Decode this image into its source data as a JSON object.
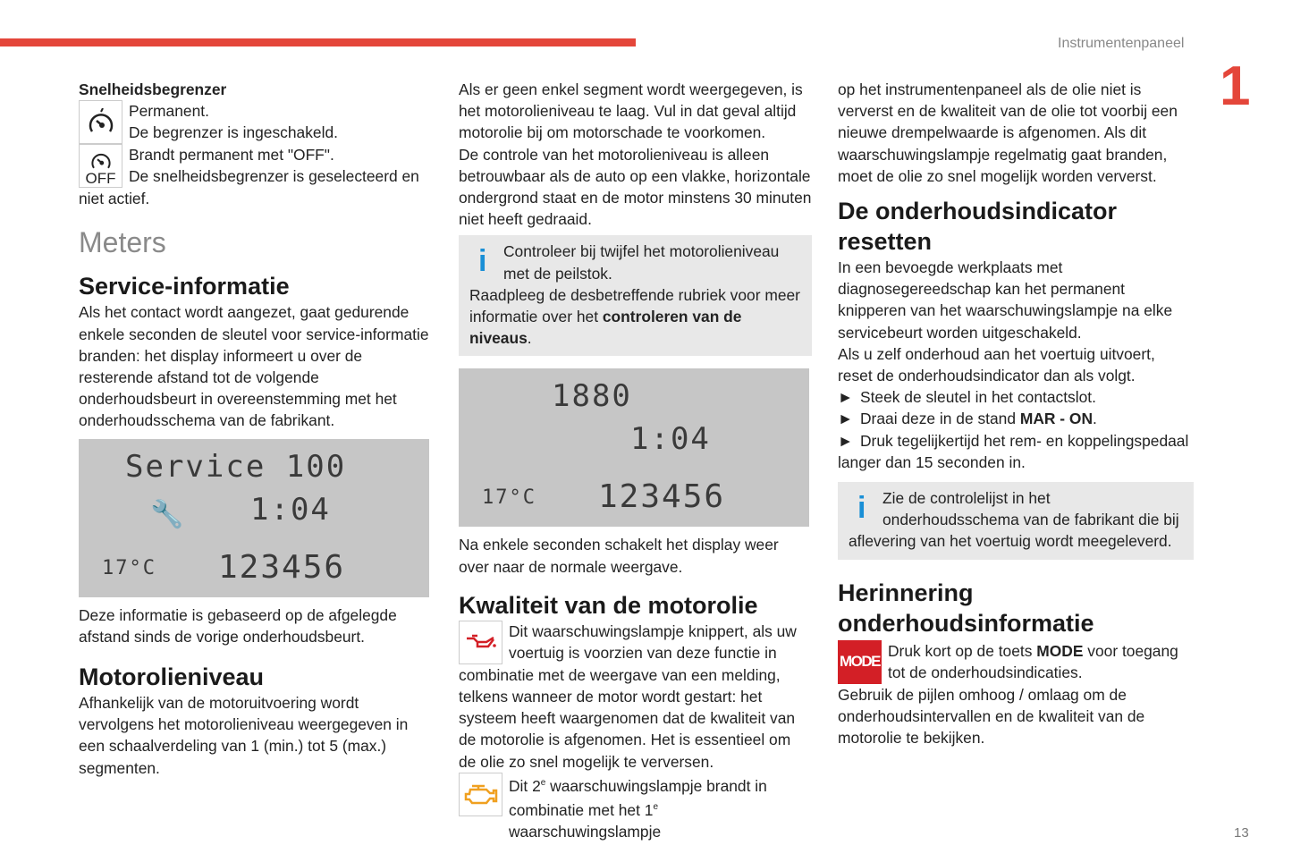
{
  "header": {
    "title": "Instrumentenpaneel",
    "chapter": "1",
    "page": "13",
    "accent": "#e4463a"
  },
  "col1": {
    "limiter_title": "Snelheidsbegrenzer",
    "limiter_lines": [
      "Permanent.",
      "De begrenzer is ingeschakeld.",
      "Brandt permanent met \"OFF\".",
      "De snelheidsbegrenzer is geselecteerd en",
      "niet actief."
    ],
    "off_label": "OFF",
    "meters": "Meters",
    "service_title": "Service-informatie",
    "service_text": "Als het contact wordt aangezet, gaat gedurende enkele seconden de sleutel voor service-informatie branden: het display informeert u over de resterende afstand tot de volgende onderhoudsbeurt in overeenstemming met het onderhoudsschema van de fabrikant.",
    "display": {
      "line1": "Service 100",
      "time": "1:04",
      "temp": "17°C",
      "odo": "123456"
    },
    "after_display": "Deze informatie is gebaseerd op de afgelegde afstand sinds de vorige onderhoudsbeurt.",
    "oil_title": "Motorolieniveau",
    "oil_text": "Afhankelijk van de motoruitvoering wordt vervolgens het motorolieniveau weergegeven in een schaalverdeling van 1 (min.) tot 5 (max.) segmenten."
  },
  "col2": {
    "p1": "Als er geen enkel segment wordt weergegeven, is het motorolieniveau te laag. Vul in dat geval altijd motorolie bij om motorschade te voorkomen.",
    "p2": "De controle van het motorolieniveau is alleen betrouwbaar als de auto op een vlakke, horizontale ondergrond staat en de motor minstens 30 minuten niet heeft gedraaid.",
    "info_line": "Controleer bij twijfel het motorolieniveau met de peilstok.",
    "info_more": "Raadpleeg de desbetreffende rubriek voor meer informatie over het ",
    "info_bold": "controleren van de niveaus",
    "info_end": ".",
    "display": {
      "line1": "1880",
      "time": "1:04",
      "temp": "17°C",
      "odo": "123456"
    },
    "after_display": "Na enkele seconden schakelt het display weer over naar de normale weergave.",
    "quality_title": "Kwaliteit van de motorolie",
    "q_first": "Dit waarschuwingslampje knippert, als uw voertuig is voorzien van deze functie in",
    "q_rest": "combinatie met de weergave van een melding, telkens wanneer de motor wordt gestart: het systeem heeft waargenomen dat de kwaliteit van de motorolie is afgenomen. Het is essentieel om de olie zo snel mogelijk te verversen.",
    "q2_a": "Dit 2",
    "q2_sup": "e",
    "q2_b": " waarschuwingslampje brandt in combinatie met het 1",
    "q2_sup2": "e",
    "q2_c": " waarschuwingslampje"
  },
  "col3": {
    "p1": "op het instrumentenpaneel als de olie niet is ververst en de kwaliteit van de olie tot voorbij een nieuwe drempelwaarde is afgenomen. Als dit waarschuwingslampje regelmatig gaat branden, moet de olie zo snel mogelijk worden ververst.",
    "reset_title": "De onderhoudsindicator resetten",
    "r1": "In een bevoegde werkplaats met diagnosegereedschap kan het permanent knipperen van het waarschuwingslampje na elke servicebeurt worden uitgeschakeld.",
    "r2": "Als u zelf onderhoud aan het voertuig uitvoert, reset de onderhoudsindicator dan als volgt.",
    "bullet": "►",
    "b1": "Steek de sleutel in het contactslot.",
    "b2a": "Draai deze in de stand ",
    "b2b": "MAR - ON",
    "b2c": ".",
    "b3": "Druk tegelijkertijd het rem- en koppelingspedaal langer dan 15 seconden in.",
    "info": "Zie de controlelijst in het onderhoudsschema van de fabrikant die bij aflevering van het voertuig wordt meegeleverd.",
    "recall_title": "Herinnering onderhoudsinformatie",
    "mode_icon": "MODE",
    "m_a": "Druk kort op de toets ",
    "m_b": "MODE",
    "m_c": " voor toegang tot de onderhoudsindicaties.",
    "m2": "Gebruik de pijlen omhoog / omlaag om de onderhoudsintervallen en de kwaliteit van de motorolie te bekijken."
  }
}
